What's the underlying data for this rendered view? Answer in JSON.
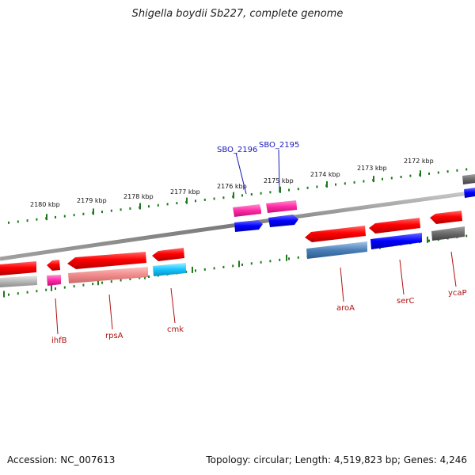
{
  "title": "Shigella boydii Sb227, complete genome",
  "footer": {
    "accession": "Accession: NC_007613",
    "topology": "Topology: circular; Length: 4,519,823 bp; Genes: 4,246"
  },
  "colors": {
    "backbone": "#888888",
    "tick": "#1f7a1f",
    "label_blue": "#1a1ab8",
    "label_red": "#b01010"
  },
  "kbp_ticks": [
    {
      "kbp": 2180,
      "label": "2180 kbp"
    },
    {
      "kbp": 2179,
      "label": "2179 kbp"
    },
    {
      "kbp": 2178,
      "label": "2178 kbp"
    },
    {
      "kbp": 2177,
      "label": "2177 kbp"
    },
    {
      "kbp": 2176,
      "label": "2176 kbp"
    },
    {
      "kbp": 2175,
      "label": "2175 kbp"
    },
    {
      "kbp": 2174,
      "label": "2174 kbp"
    },
    {
      "kbp": 2173,
      "label": "2173 kbp"
    },
    {
      "kbp": 2172,
      "label": "2172 kbp"
    }
  ],
  "gene_labels_top": [
    {
      "name": "SBO_2196",
      "color": "#1a1ab8"
    },
    {
      "name": "SBO_2195",
      "color": "#1a1ab8"
    }
  ],
  "gene_labels_bottom": [
    {
      "name": "ihfB",
      "color": "#b01010"
    },
    {
      "name": "rpsA",
      "color": "#b01010"
    },
    {
      "name": "cmk",
      "color": "#b01010"
    },
    {
      "name": "aroA",
      "color": "#b01010"
    },
    {
      "name": "serC",
      "color": "#b01010"
    },
    {
      "name": "ycaP",
      "color": "#b01010"
    }
  ]
}
